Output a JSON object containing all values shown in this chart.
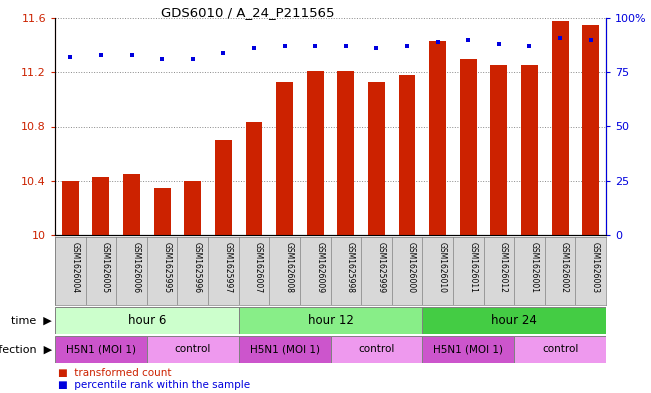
{
  "title": "GDS6010 / A_24_P211565",
  "samples": [
    "GSM1626004",
    "GSM1626005",
    "GSM1626006",
    "GSM1625995",
    "GSM1625996",
    "GSM1625997",
    "GSM1626007",
    "GSM1626008",
    "GSM1626009",
    "GSM1625998",
    "GSM1625999",
    "GSM1626000",
    "GSM1626010",
    "GSM1626011",
    "GSM1626012",
    "GSM1626001",
    "GSM1626002",
    "GSM1626003"
  ],
  "bar_values": [
    10.4,
    10.43,
    10.45,
    10.35,
    10.4,
    10.7,
    10.83,
    11.13,
    11.21,
    11.21,
    11.13,
    11.18,
    11.43,
    11.3,
    11.25,
    11.25,
    11.58,
    11.55
  ],
  "dot_values": [
    82,
    83,
    83,
    81,
    81,
    84,
    86,
    87,
    87,
    87,
    86,
    87,
    89,
    90,
    88,
    87,
    91,
    90
  ],
  "bar_color": "#cc2200",
  "dot_color": "#0000dd",
  "ylim_left": [
    10.0,
    11.6
  ],
  "ylim_right": [
    0,
    100
  ],
  "yticks_left": [
    10.0,
    10.4,
    10.8,
    11.2,
    11.6
  ],
  "yticks_right": [
    0,
    25,
    50,
    75,
    100
  ],
  "ytick_labels_left": [
    "10",
    "10.4",
    "10.8",
    "11.2",
    "11.6"
  ],
  "ytick_labels_right": [
    "0",
    "25",
    "50",
    "75",
    "100%"
  ],
  "time_groups": [
    {
      "label": "hour 6",
      "start": 0,
      "end": 6,
      "color": "#ccffcc"
    },
    {
      "label": "hour 12",
      "start": 6,
      "end": 12,
      "color": "#88ee88"
    },
    {
      "label": "hour 24",
      "start": 12,
      "end": 18,
      "color": "#44cc44"
    }
  ],
  "infection_groups": [
    {
      "label": "H5N1 (MOI 1)",
      "start": 0,
      "end": 3,
      "color": "#cc55cc"
    },
    {
      "label": "control",
      "start": 3,
      "end": 6,
      "color": "#ee99ee"
    },
    {
      "label": "H5N1 (MOI 1)",
      "start": 6,
      "end": 9,
      "color": "#cc55cc"
    },
    {
      "label": "control",
      "start": 9,
      "end": 12,
      "color": "#ee99ee"
    },
    {
      "label": "H5N1 (MOI 1)",
      "start": 12,
      "end": 15,
      "color": "#cc55cc"
    },
    {
      "label": "control",
      "start": 15,
      "end": 18,
      "color": "#ee99ee"
    }
  ],
  "legend_bar_label": "transformed count",
  "legend_dot_label": "percentile rank within the sample",
  "time_label": "time",
  "infection_label": "infection",
  "bg_color": "#ffffff",
  "grid_color": "#888888",
  "label_bg_color": "#d8d8d8",
  "n_samples": 18
}
